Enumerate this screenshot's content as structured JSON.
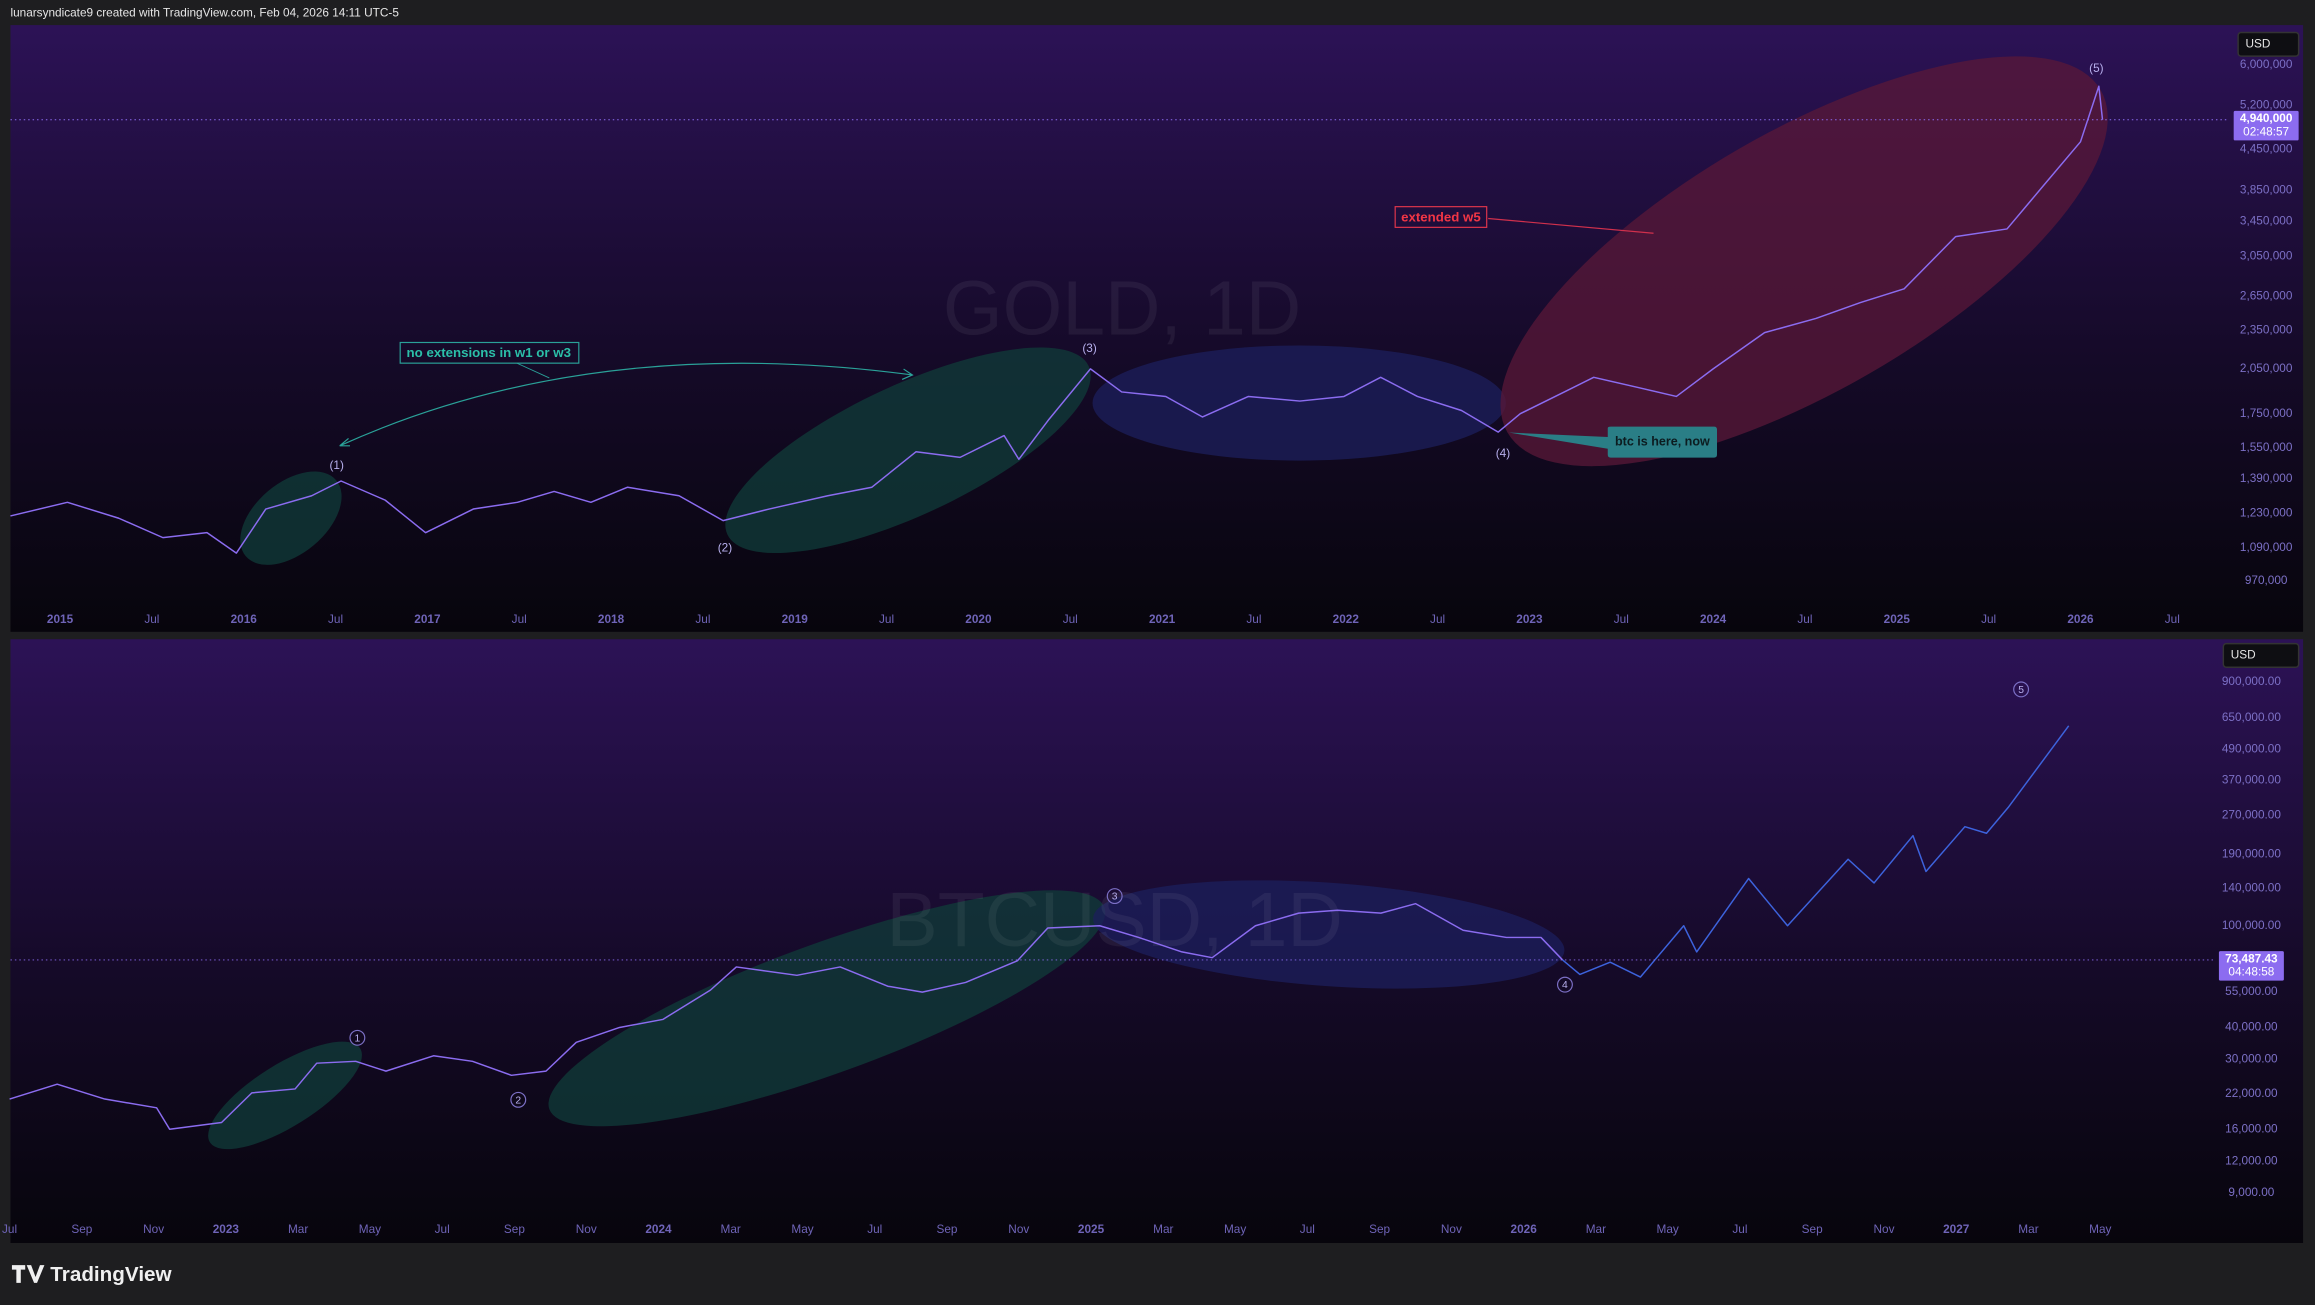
{
  "header": "lunarsyndicate9 created with TradingView.com, Feb 04, 2026 14:11 UTC-5",
  "footer": "TradingView",
  "chart_data": [
    {
      "type": "line",
      "title": "GOLD, 1D",
      "currency": "USD",
      "log_scale": true,
      "grid": false,
      "xlim": [
        2014.73,
        2026.81
      ],
      "ylim": [
        890000,
        6900000
      ],
      "xticks": [
        2015,
        {
          "value": 2015.5,
          "label": "Jul"
        },
        2016,
        {
          "value": 2016.5,
          "label": "Jul"
        },
        2017,
        {
          "value": 2017.5,
          "label": "Jul"
        },
        2018,
        {
          "value": 2018.5,
          "label": "Jul"
        },
        2019,
        {
          "value": 2019.5,
          "label": "Jul"
        },
        2020,
        {
          "value": 2020.5,
          "label": "Jul"
        },
        2021,
        {
          "value": 2021.5,
          "label": "Jul"
        },
        2022,
        {
          "value": 2022.5,
          "label": "Jul"
        },
        2023,
        {
          "value": 2023.5,
          "label": "Jul"
        },
        2024,
        {
          "value": 2024.5,
          "label": "Jul"
        },
        2025,
        {
          "value": 2025.5,
          "label": "Jul"
        },
        2026,
        {
          "value": 2026.5,
          "label": "Jul"
        }
      ],
      "yticks": [
        {
          "value": 6000000,
          "label": "6,000,000"
        },
        {
          "value": 5200000,
          "label": "5,200,000"
        },
        {
          "value": 4450000,
          "label": "4,450,000"
        },
        {
          "value": 3850000,
          "label": "3,850,000"
        },
        {
          "value": 3450000,
          "label": "3,450,000"
        },
        {
          "value": 3050000,
          "label": "3,050,000"
        },
        {
          "value": 2650000,
          "label": "2,650,000"
        },
        {
          "value": 2350000,
          "label": "2,350,000"
        },
        {
          "value": 2050000,
          "label": "2,050,000"
        },
        {
          "value": 1750000,
          "label": "1,750,000"
        },
        {
          "value": 1550000,
          "label": "1,550,000"
        },
        {
          "value": 1390000,
          "label": "1,390,000"
        },
        {
          "value": 1230000,
          "label": "1,230,000"
        },
        {
          "value": 1090000,
          "label": "1,090,000"
        },
        {
          "value": 970000,
          "label": "970,000"
        }
      ],
      "last_price": 4940000,
      "last_price_label": "4,940,000",
      "countdown": "02:48:57",
      "wave_labels": [
        "(1)",
        "(2)",
        "(3)",
        "(4)",
        "(5)"
      ],
      "annotations": [
        "no extensions in w1 or w3",
        "extended w5",
        "btc is here, now"
      ],
      "series": [
        {
          "color": "#8b6cf0",
          "x": [
            2014.73,
            2015.04,
            2015.32,
            2015.56,
            2015.8,
            2015.96,
            2016.12,
            2016.37,
            2016.53,
            2016.77,
            2016.99,
            2017.25,
            2017.49,
            2017.69,
            2017.89,
            2018.09,
            2018.37,
            2018.61,
            2018.86,
            2019.18,
            2019.42,
            2019.66,
            2019.9,
            2020.14,
            2020.22,
            2020.38,
            2020.61,
            2020.78,
            2021.02,
            2021.22,
            2021.47,
            2021.75,
            2021.99,
            2022.19,
            2022.39,
            2022.63,
            2022.83,
            2022.95,
            2023.19,
            2023.35,
            2023.59,
            2023.8,
            2024.0,
            2024.28,
            2024.56,
            2024.8,
            2025.04,
            2025.32,
            2025.6,
            2025.8,
            2026.0,
            2026.1,
            2026.12
          ],
          "values": [
            1220000,
            1280000,
            1210000,
            1130000,
            1150000,
            1070000,
            1250000,
            1310000,
            1380000,
            1290000,
            1150000,
            1250000,
            1280000,
            1330000,
            1280000,
            1350000,
            1310000,
            1200000,
            1250000,
            1310000,
            1350000,
            1530000,
            1500000,
            1620000,
            1490000,
            1710000,
            2050000,
            1890000,
            1860000,
            1730000,
            1860000,
            1830000,
            1860000,
            1990000,
            1860000,
            1770000,
            1640000,
            1750000,
            1890000,
            1990000,
            1920000,
            1860000,
            2050000,
            2330000,
            2450000,
            2590000,
            2720000,
            3270000,
            3360000,
            3920000,
            4570000,
            5560000,
            4940000
          ]
        }
      ]
    },
    {
      "type": "line",
      "title": "BTCUSD, 1D",
      "currency": "USD",
      "log_scale": true,
      "grid": false,
      "xlim": [
        2022.502,
        2027.597
      ],
      "ylim": [
        7200,
        1320000
      ],
      "xticks": [
        {
          "value": 2022.5,
          "label": "Jul"
        },
        {
          "value": 2022.667,
          "label": "Sep"
        },
        {
          "value": 2022.833,
          "label": "Nov"
        },
        2023,
        {
          "value": 2023.167,
          "label": "Mar"
        },
        {
          "value": 2023.333,
          "label": "May"
        },
        {
          "value": 2023.5,
          "label": "Jul"
        },
        {
          "value": 2023.667,
          "label": "Sep"
        },
        {
          "value": 2023.833,
          "label": "Nov"
        },
        2024,
        {
          "value": 2024.167,
          "label": "Mar"
        },
        {
          "value": 2024.333,
          "label": "May"
        },
        {
          "value": 2024.5,
          "label": "Jul"
        },
        {
          "value": 2024.667,
          "label": "Sep"
        },
        {
          "value": 2024.833,
          "label": "Nov"
        },
        2025,
        {
          "value": 2025.167,
          "label": "Mar"
        },
        {
          "value": 2025.333,
          "label": "May"
        },
        {
          "value": 2025.5,
          "label": "Jul"
        },
        {
          "value": 2025.667,
          "label": "Sep"
        },
        {
          "value": 2025.833,
          "label": "Nov"
        },
        2026,
        {
          "value": 2026.167,
          "label": "Mar"
        },
        {
          "value": 2026.333,
          "label": "May"
        },
        {
          "value": 2026.5,
          "label": "Jul"
        },
        {
          "value": 2026.667,
          "label": "Sep"
        },
        {
          "value": 2026.833,
          "label": "Nov"
        },
        2027,
        {
          "value": 2027.167,
          "label": "Mar"
        },
        {
          "value": 2027.333,
          "label": "May"
        }
      ],
      "yticks": [
        {
          "value": 900000,
          "label": "900,000.00"
        },
        {
          "value": 650000,
          "label": "650,000.00"
        },
        {
          "value": 490000,
          "label": "490,000.00"
        },
        {
          "value": 370000,
          "label": "370,000.00"
        },
        {
          "value": 270000,
          "label": "270,000.00"
        },
        {
          "value": 190000,
          "label": "190,000.00"
        },
        {
          "value": 140000,
          "label": "140,000.00"
        },
        {
          "value": 100000,
          "label": "100,000.00"
        },
        {
          "value": 55000,
          "label": "55,000.00"
        },
        {
          "value": 40000,
          "label": "40,000.00"
        },
        {
          "value": 30000,
          "label": "30,000.00"
        },
        {
          "value": 22000,
          "label": "22,000.00"
        },
        {
          "value": 16000,
          "label": "16,000.00"
        },
        {
          "value": 12000,
          "label": "12,000.00"
        },
        {
          "value": 9000,
          "label": "9,000.00"
        }
      ],
      "last_price": 73487.43,
      "last_price_label": "73,487.43",
      "countdown": "04:48:58",
      "wave_labels": [
        "1",
        "2",
        "3",
        "4",
        "5"
      ],
      "series": [
        {
          "color": "#8b6cf0",
          "x": [
            2022.5,
            2022.61,
            2022.72,
            2022.84,
            2022.87,
            2022.99,
            2023.06,
            2023.16,
            2023.21,
            2023.3,
            2023.37,
            2023.48,
            2023.57,
            2023.66,
            2023.74,
            2023.81,
            2023.91,
            2024.01,
            2024.12,
            2024.18,
            2024.32,
            2024.42,
            2024.53,
            2024.61,
            2024.71,
            2024.83,
            2024.9,
            2025.02,
            2025.11,
            2025.21,
            2025.28,
            2025.38,
            2025.48,
            2025.57,
            2025.67,
            2025.75,
            2025.86,
            2025.96,
            2026.04,
            2026.09
          ],
          "values": [
            21000,
            24000,
            21000,
            19400,
            16000,
            17000,
            22200,
            23000,
            29000,
            29500,
            27000,
            31000,
            29500,
            26000,
            27000,
            35000,
            40000,
            43000,
            56000,
            69000,
            64000,
            69000,
            58000,
            55000,
            60000,
            73000,
            98000,
            100000,
            90000,
            79000,
            75000,
            100000,
            112000,
            115000,
            112000,
            122000,
            96000,
            90000,
            90000,
            73487.43
          ]
        },
        {
          "color": "#3d63dd",
          "x": [
            2026.09,
            2026.13,
            2026.2,
            2026.27,
            2026.37,
            2026.4,
            2026.52,
            2026.61,
            2026.75,
            2026.81,
            2026.9,
            2026.93,
            2027.02,
            2027.07,
            2027.12,
            2027.26
          ],
          "values": [
            73487.43,
            64500,
            72000,
            63000,
            100000,
            79000,
            153000,
            100000,
            182000,
            147000,
            225000,
            163000,
            244000,
            230000,
            290000,
            605000
          ]
        }
      ]
    }
  ]
}
